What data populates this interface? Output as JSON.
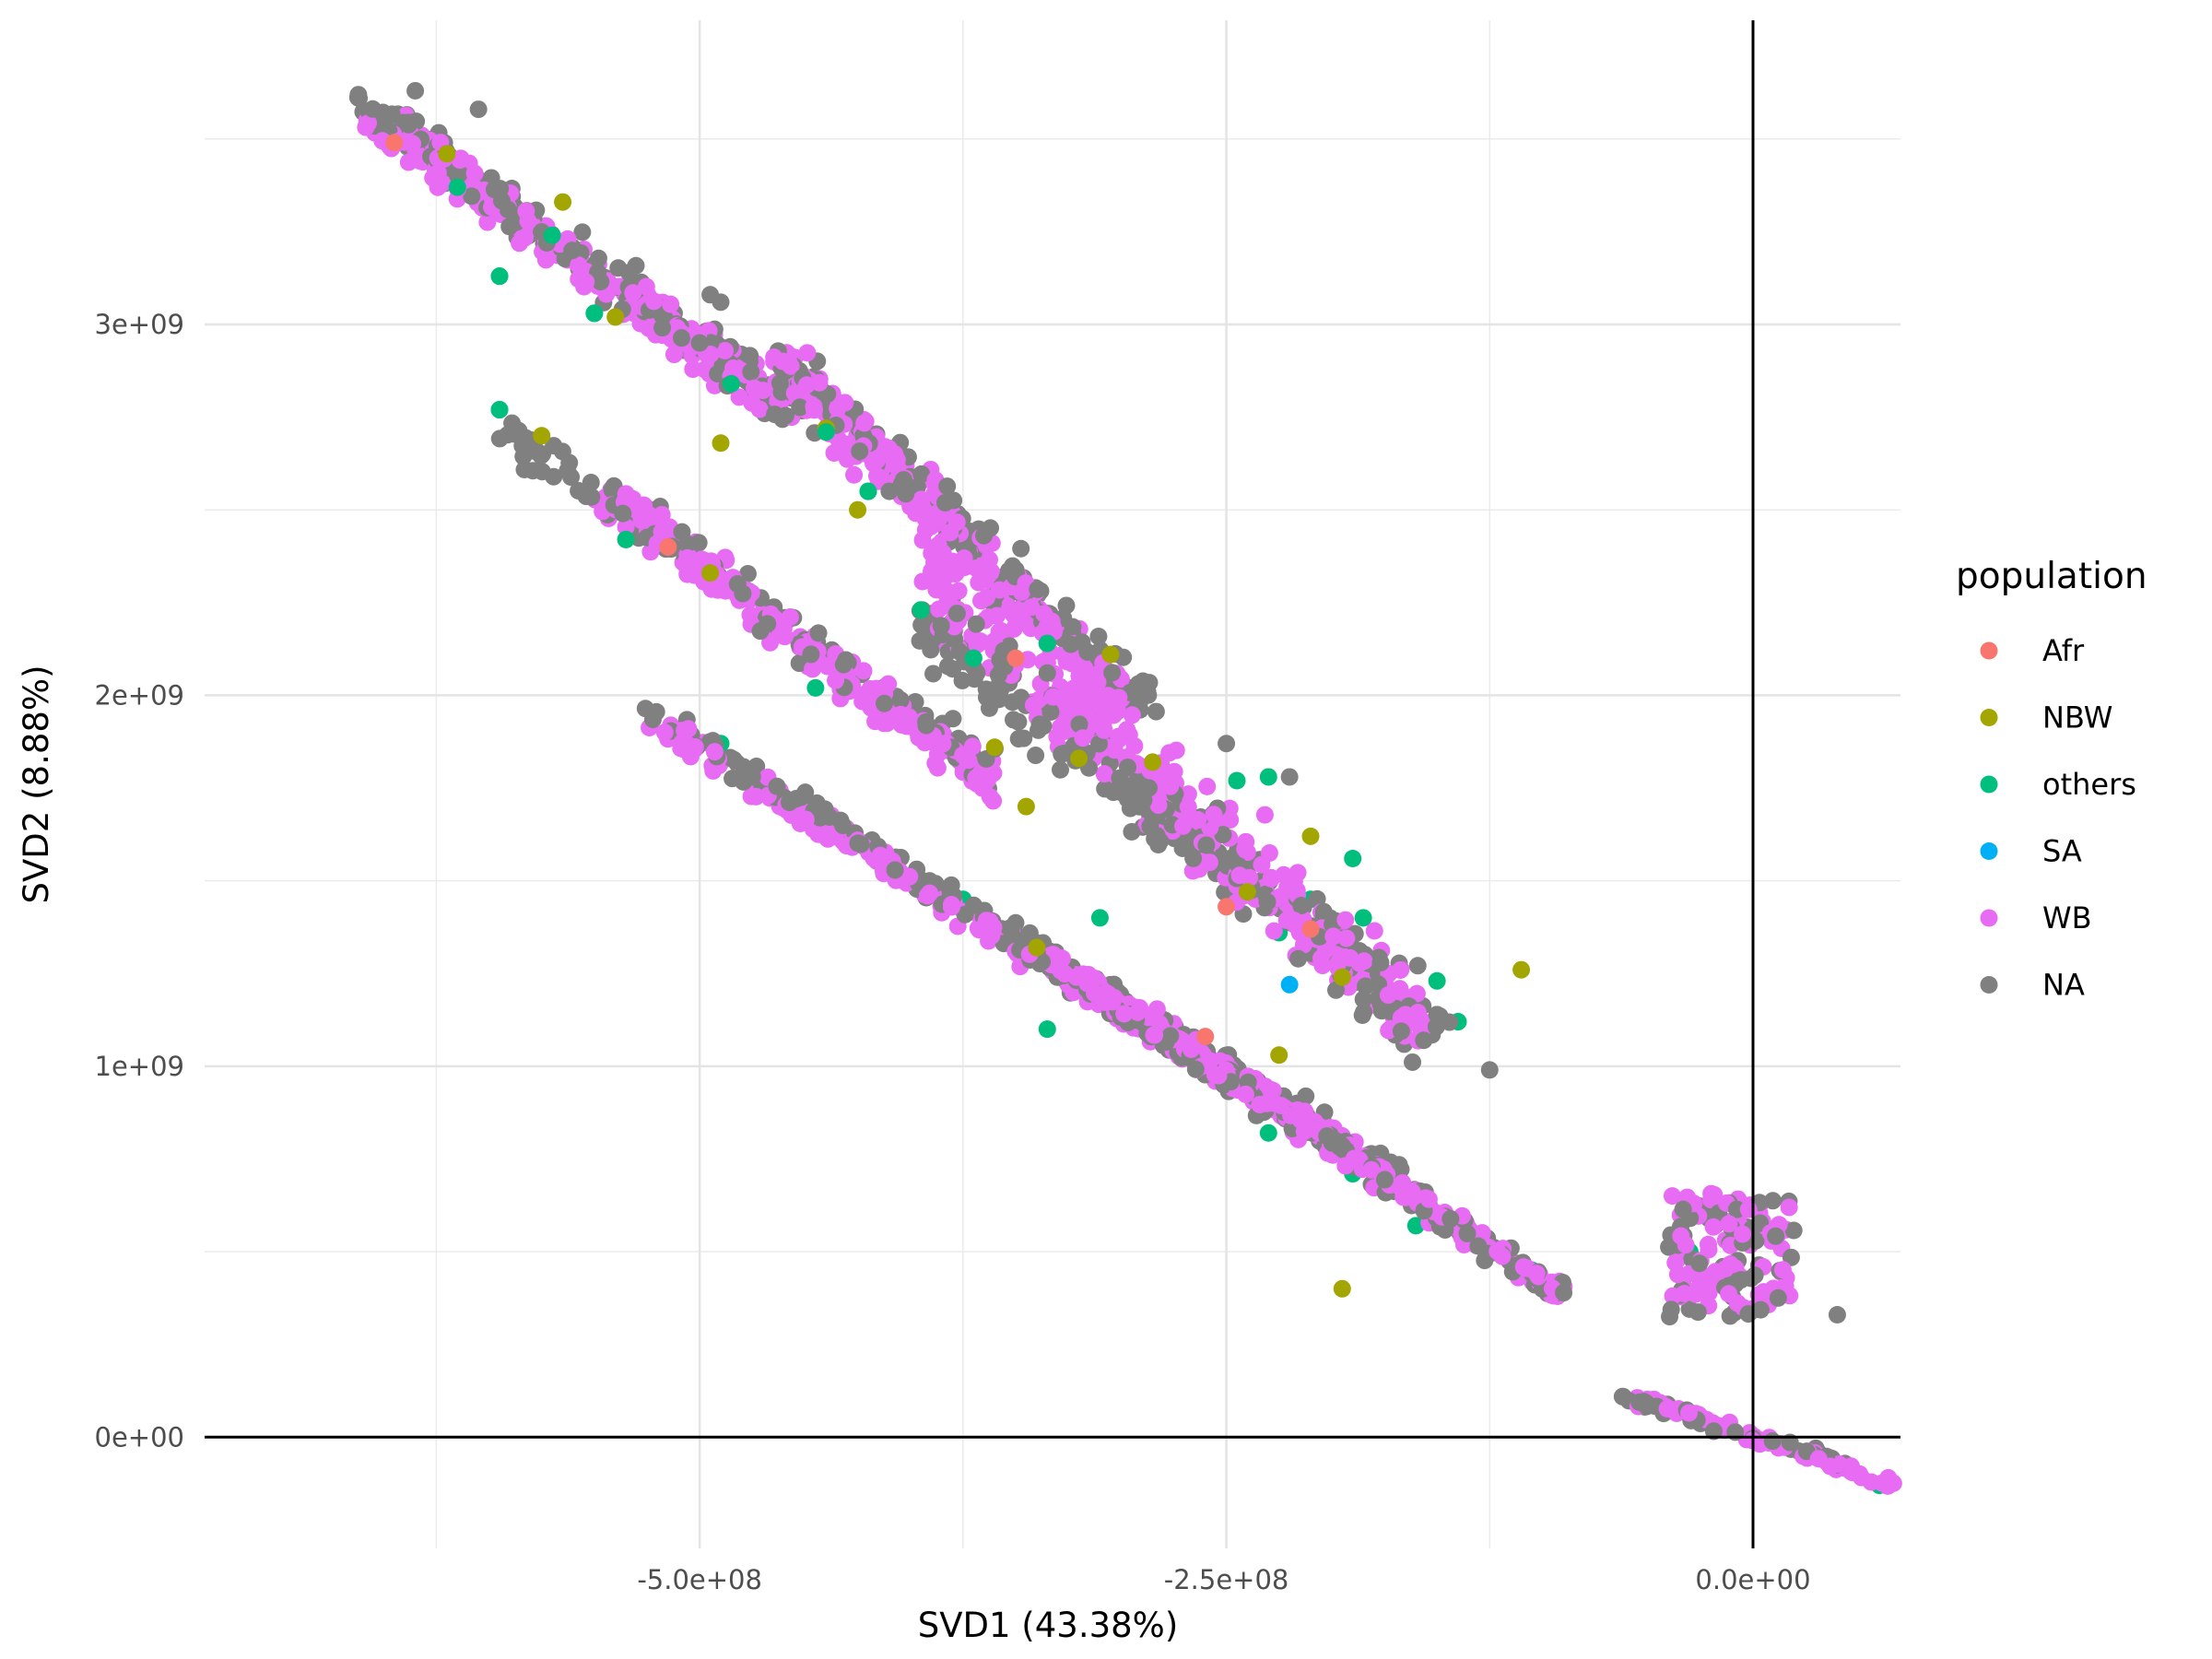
{
  "chart_data": {
    "type": "scatter",
    "title": "",
    "xlabel": "SVD1 (43.38%)",
    "ylabel": "SVD2 (8.88%)",
    "xlim": [
      -735000000.0,
      70000000.0
    ],
    "ylim": [
      -300000000.0,
      3820000000.0
    ],
    "x_ticks": [
      -500000000.0,
      -250000000.0,
      0.0
    ],
    "x_tick_labels": [
      "-5.0e+08",
      "-2.5e+08",
      "0.0e+00"
    ],
    "y_ticks": [
      0,
      1000000000.0,
      2000000000.0,
      3000000000.0
    ],
    "y_tick_labels": [
      "0e+00",
      "1e+09",
      "2e+09",
      "3e+09"
    ],
    "x_minor_ticks": [
      -625000000.0,
      -375000000.0,
      -125000000.0
    ],
    "y_minor_ticks": [
      500000000.0,
      1500000000.0,
      2500000000.0,
      3500000000.0
    ],
    "grid": true,
    "reference_lines": {
      "x": 0,
      "y": 0
    },
    "legend": {
      "title": "population",
      "position": "right",
      "entries": [
        {
          "label": "Afr",
          "color": "#F8766D"
        },
        {
          "label": "NBW",
          "color": "#A3A500"
        },
        {
          "label": "others",
          "color": "#00BF7D"
        },
        {
          "label": "SA",
          "color": "#00B0F6"
        },
        {
          "label": "WB",
          "color": "#E76BF3"
        },
        {
          "label": "NA",
          "color": "#808080"
        }
      ]
    },
    "series": [
      {
        "name": "Afr",
        "points": [
          [
            -645000000.0,
            3490000000.0
          ],
          [
            -515000000.0,
            2400000000.0
          ],
          [
            -350000000.0,
            2100000000.0
          ],
          [
            -260000000.0,
            1080000000.0
          ],
          [
            -210000000.0,
            1370000000.0
          ],
          [
            -250000000.0,
            1430000000.0
          ]
        ]
      },
      {
        "name": "NBW",
        "points": [
          [
            -620000000.0,
            3460000000.0
          ],
          [
            -565000000.0,
            3330000000.0
          ],
          [
            -540000000.0,
            3020000000.0
          ],
          [
            -490000000.0,
            2680000000.0
          ],
          [
            -440000000.0,
            2720000000.0
          ],
          [
            -575000000.0,
            2700000000.0
          ],
          [
            -425000000.0,
            2500000000.0
          ],
          [
            -495000000.0,
            2330000000.0
          ],
          [
            -360000000.0,
            1860000000.0
          ],
          [
            -345000000.0,
            1700000000.0
          ],
          [
            -320000000.0,
            1830000000.0
          ],
          [
            -285000000.0,
            1820000000.0
          ],
          [
            -240000000.0,
            1470000000.0
          ],
          [
            -210000000.0,
            1620000000.0
          ],
          [
            -225000000.0,
            1030000000.0
          ],
          [
            -195000000.0,
            1240000000.0
          ],
          [
            -305000000.0,
            2110000000.0
          ],
          [
            -195000000.0,
            400000000.0
          ],
          [
            -110000000.0,
            1260000000.0
          ],
          [
            -340000000.0,
            1320000000.0
          ]
        ]
      },
      {
        "name": "others",
        "points": [
          [
            -615000000.0,
            3370000000.0
          ],
          [
            -570000000.0,
            3240000000.0
          ],
          [
            -595000000.0,
            3130000000.0
          ],
          [
            -550000000.0,
            3030000000.0
          ],
          [
            -485000000.0,
            2840000000.0
          ],
          [
            -440000000.0,
            2710000000.0
          ],
          [
            -420000000.0,
            2550000000.0
          ],
          [
            -595000000.0,
            2770000000.0
          ],
          [
            -535000000.0,
            2420000000.0
          ],
          [
            -395000000.0,
            2230000000.0
          ],
          [
            -370000000.0,
            2100000000.0
          ],
          [
            -335000000.0,
            2140000000.0
          ],
          [
            -445000000.0,
            2020000000.0
          ],
          [
            -385000000.0,
            1850000000.0
          ],
          [
            -245000000.0,
            1770000000.0
          ],
          [
            -230000000.0,
            1780000000.0
          ],
          [
            -210000000.0,
            1450000000.0
          ],
          [
            -190000000.0,
            1560000000.0
          ],
          [
            -185000000.0,
            1400000000.0
          ],
          [
            -150000000.0,
            1230000000.0
          ],
          [
            -140000000.0,
            1120000000.0
          ],
          [
            -490000000.0,
            1870000000.0
          ],
          [
            -455000000.0,
            1680000000.0
          ],
          [
            -375000000.0,
            1450000000.0
          ],
          [
            -310000000.0,
            1400000000.0
          ],
          [
            -230000000.0,
            820000000.0
          ],
          [
            -190000000.0,
            710000000.0
          ],
          [
            -160000000.0,
            570000000.0
          ],
          [
            -105000000.0,
            450000000.0
          ],
          [
            -30000000.0,
            500000000.0
          ],
          [
            60000000.0,
            -130000000.0
          ],
          [
            -335000000.0,
            1100000000.0
          ],
          [
            -225000000.0,
            1360000000.0
          ]
        ]
      },
      {
        "name": "SA",
        "points": [
          [
            -220000000.0,
            1220000000.0
          ]
        ]
      },
      {
        "name": "WB",
        "segments": [
          {
            "from": [
              -655000000.0,
              3550000000.0
            ],
            "to": [
              -460000000.0,
              2780000000.0
            ],
            "n": 240,
            "spread": 100000000.0
          },
          {
            "from": [
              -460000000.0,
              2900000000.0
            ],
            "to": [
              -300000000.0,
              1980000000.0
            ],
            "n": 230,
            "spread": 140000000.0
          },
          {
            "from": [
              -390000000.0,
              2300000000.0
            ],
            "to": [
              -155000000.0,
              1100000000.0
            ],
            "n": 300,
            "spread": 220000000.0
          },
          {
            "from": [
              -545000000.0,
              2550000000.0
            ],
            "to": [
              -360000000.0,
              1750000000.0
            ],
            "n": 200,
            "spread": 100000000.0
          },
          {
            "from": [
              -520000000.0,
              1920000000.0
            ],
            "to": [
              -180000000.0,
              740000000.0
            ],
            "n": 280,
            "spread": 60000000.0
          },
          {
            "from": [
              -340000000.0,
              1320000000.0
            ],
            "to": [
              -90000000.0,
              380000000.0
            ],
            "n": 220,
            "spread": 40000000.0
          },
          {
            "from": [
              -65000000.0,
              130000000.0
            ],
            "to": [
              72000000.0,
              -140000000.0
            ],
            "n": 70,
            "spread": 20000000.0
          }
        ],
        "cluster": {
          "center": [
            -10000000.0,
            500000000.0
          ],
          "width": 60000000.0,
          "height": 320000000.0,
          "n": 80
        }
      },
      {
        "name": "NA",
        "segments": [
          {
            "from": [
              -660000000.0,
              3600000000.0
            ],
            "to": [
              -450000000.0,
              2750000000.0
            ],
            "n": 180,
            "spread": 100000000.0
          },
          {
            "from": [
              -460000000.0,
              2900000000.0
            ],
            "to": [
              -285000000.0,
              1950000000.0
            ],
            "n": 180,
            "spread": 140000000.0
          },
          {
            "from": [
              -395000000.0,
              2200000000.0
            ],
            "to": [
              -150000000.0,
              1100000000.0
            ],
            "n": 240,
            "spread": 220000000.0
          },
          {
            "from": [
              -595000000.0,
              2730000000.0
            ],
            "to": [
              -360000000.0,
              1800000000.0
            ],
            "n": 150,
            "spread": 100000000.0
          },
          {
            "from": [
              -520000000.0,
              1940000000.0
            ],
            "to": [
              -170000000.0,
              720000000.0
            ],
            "n": 220,
            "spread": 60000000.0
          },
          {
            "from": [
              -340000000.0,
              1300000000.0
            ],
            "to": [
              -90000000.0,
              380000000.0
            ],
            "n": 160,
            "spread": 40000000.0
          },
          {
            "from": [
              -70000000.0,
              120000000.0
            ],
            "to": [
              50000000.0,
              -80000000.0
            ],
            "n": 40,
            "spread": 20000000.0
          }
        ],
        "cluster": {
          "center": [
            -10000000.0,
            480000000.0
          ],
          "width": 60000000.0,
          "height": 320000000.0,
          "n": 60
        },
        "points": [
          [
            -635000000.0,
            3630000000.0
          ],
          [
            -605000000.0,
            3580000000.0
          ],
          [
            -490000000.0,
            3060000000.0
          ],
          [
            -495000000.0,
            3080000000.0
          ],
          [
            -500000000.0,
            2950000000.0
          ],
          [
            -410000000.0,
            2550000000.0
          ],
          [
            -220000000.0,
            1780000000.0
          ],
          [
            -250000000.0,
            1870000000.0
          ],
          [
            40000000.0,
            330000000.0
          ],
          [
            -335000000.0,
            2060000000.0
          ],
          [
            -125000000.0,
            990000000.0
          ]
        ]
      }
    ]
  }
}
